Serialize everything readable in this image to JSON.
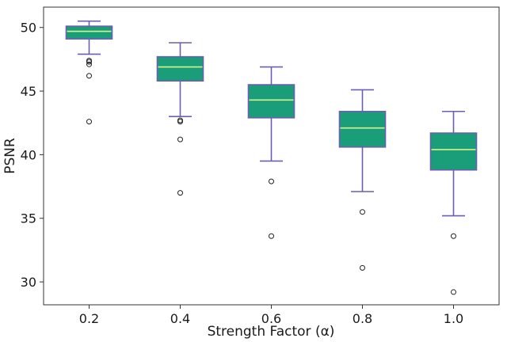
{
  "chart_data": {
    "type": "box",
    "xlabel": "Strength Factor (α)",
    "ylabel": "PSNR",
    "ylim": [
      28.2,
      51.6
    ],
    "yticks": [
      30,
      35,
      40,
      45,
      50
    ],
    "grid": false,
    "legend": "none",
    "box_fill_color": "#1a9e7a",
    "box_edge_color": "#6a5fb0",
    "median_color": "#d6f28a",
    "categories": [
      "0.2",
      "0.4",
      "0.6",
      "0.8",
      "1.0"
    ],
    "boxes": [
      {
        "category": "0.2",
        "whisker_low": 47.9,
        "q1": 49.1,
        "median": 49.7,
        "q3": 50.1,
        "whisker_high": 50.5,
        "outliers": [
          47.4,
          47.3,
          47.1,
          46.2,
          42.6
        ]
      },
      {
        "category": "0.4",
        "whisker_low": 43.0,
        "q1": 45.8,
        "median": 46.9,
        "q3": 47.7,
        "whisker_high": 48.8,
        "outliers": [
          42.7,
          42.6,
          41.2,
          37.0
        ]
      },
      {
        "category": "0.6",
        "whisker_low": 39.5,
        "q1": 42.9,
        "median": 44.3,
        "q3": 45.5,
        "whisker_high": 46.9,
        "outliers": [
          37.9,
          33.6
        ]
      },
      {
        "category": "0.8",
        "whisker_low": 37.1,
        "q1": 40.6,
        "median": 42.1,
        "q3": 43.4,
        "whisker_high": 45.1,
        "outliers": [
          35.5,
          31.1
        ]
      },
      {
        "category": "1.0",
        "whisker_low": 35.2,
        "q1": 38.8,
        "median": 40.4,
        "q3": 41.7,
        "whisker_high": 43.4,
        "outliers": [
          33.6,
          29.2
        ]
      }
    ]
  }
}
